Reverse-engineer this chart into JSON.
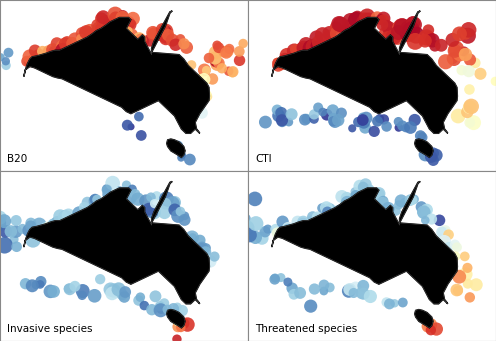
{
  "background_color": "#ffffff",
  "land_color": "#000000",
  "border_color": "#888888",
  "figsize": [
    4.96,
    3.41
  ],
  "dpi": 100,
  "lon_min": 108,
  "lon_max": 162,
  "lat_min": -47,
  "lat_max": -8,
  "labels": [
    "B20",
    "CTI",
    "Invasive species",
    "Threatened species"
  ],
  "label_fontsize": 7.5
}
